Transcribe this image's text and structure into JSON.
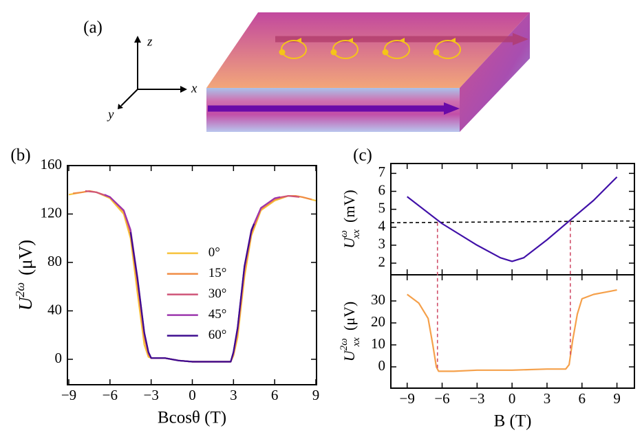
{
  "panel_a": {
    "label": "(a)",
    "axis_labels": {
      "x": "x",
      "y": "y",
      "z": "z"
    }
  },
  "chart_data": [
    {
      "type": "line",
      "panel_label": "(b)",
      "xlabel": "Bcosθ (T)",
      "ylabel": {
        "base": "U",
        "sup": "2ω",
        "unit": "(μV)"
      },
      "xlim": [
        -9.1,
        9.05
      ],
      "ylim": [
        -21,
        160
      ],
      "xticks": [
        {
          "value": -9,
          "label": "−9"
        },
        {
          "value": -6,
          "label": "−6"
        },
        {
          "value": -3,
          "label": "−3"
        },
        0,
        3,
        6,
        9
      ],
      "yticks": [
        0,
        40,
        80,
        120,
        160
      ],
      "legend": "center",
      "series": [
        {
          "name": "0°",
          "color": "#f7c33c",
          "x": [
            -9,
            -8,
            -7.5,
            -7,
            -6,
            -5,
            -4.5,
            -4,
            -3.5,
            -3.2,
            -3,
            -2,
            -1,
            0,
            1,
            2,
            2.8,
            3,
            3.3,
            3.8,
            4.3,
            5,
            6,
            7,
            7.5,
            8,
            9
          ],
          "values": [
            136,
            138,
            139,
            138,
            133,
            120,
            100,
            55,
            12,
            2,
            1,
            1,
            -1,
            -2,
            -2,
            -2,
            -2,
            3,
            18,
            68,
            102,
            123,
            131,
            135,
            135,
            134,
            131
          ]
        },
        {
          "name": "15°",
          "color": "#f08c45",
          "x": [
            -8.7,
            -8,
            -7.5,
            -7,
            -6,
            -5,
            -4.5,
            -4,
            -3.5,
            -3.2,
            -3,
            -2,
            -1,
            0,
            1,
            2,
            2.8,
            3,
            3.3,
            3.8,
            4.3,
            5,
            6,
            7,
            7.5,
            8,
            8.7
          ],
          "values": [
            137,
            138,
            139,
            138,
            134,
            122,
            104,
            62,
            18,
            4,
            1,
            1,
            -1,
            -2,
            -2,
            -2,
            -2,
            4,
            22,
            72,
            104,
            124,
            132,
            135,
            135,
            134,
            132
          ]
        },
        {
          "name": "30°",
          "color": "#cf5478",
          "x": [
            -7.8,
            -7,
            -6,
            -5,
            -4.5,
            -4,
            -3.5,
            -3.2,
            -3,
            -2,
            -1,
            0,
            1,
            2,
            2.8,
            3,
            3.3,
            3.8,
            4.3,
            5,
            6,
            7,
            7.8
          ],
          "values": [
            139,
            138,
            134,
            123,
            106,
            66,
            21,
            5,
            1,
            1,
            -1,
            -2,
            -2,
            -2,
            -2,
            5,
            25,
            76,
            106,
            125,
            133,
            135,
            134
          ]
        },
        {
          "name": "45°",
          "color": "#9c36ad",
          "x": [
            -6.4,
            -6,
            -5,
            -4.5,
            -4,
            -3.5,
            -3.2,
            -3,
            -2,
            -1,
            0,
            1,
            2,
            2.8,
            3,
            3.3,
            3.8,
            4.3,
            5,
            6,
            6.4
          ],
          "values": [
            136,
            134,
            123,
            107,
            68,
            22,
            6,
            1,
            1,
            -1,
            -2,
            -2,
            -2,
            -2,
            6,
            26,
            77,
            107,
            125,
            133,
            134
          ]
        },
        {
          "name": "60°",
          "color": "#3d0c8f",
          "x": [
            -4.5,
            -4,
            -3.5,
            -3.2,
            -3,
            -2,
            -1,
            0,
            1,
            2,
            2.8,
            3,
            3.3,
            3.8,
            4.3,
            4.5
          ],
          "values": [
            105,
            67,
            22,
            6,
            1,
            1,
            -1,
            -2,
            -2,
            -2,
            -2,
            6,
            26,
            77,
            106,
            112
          ]
        }
      ]
    },
    {
      "type": "line",
      "panel_label": "(c)",
      "ylabel": {
        "base": "U",
        "sup": "ω",
        "sub": "xx",
        "unit": "(mV)"
      },
      "xlim": [
        -10.4,
        10.5
      ],
      "ylim": [
        1.35,
        7.55
      ],
      "yticks": [
        2,
        3,
        4,
        5,
        6,
        7
      ],
      "vlines": [
        -6.4,
        5.0
      ],
      "series": [
        {
          "color": "#000000",
          "dash": true,
          "x": [
            -10.4,
            10.5
          ],
          "values": [
            4.25,
            4.35
          ]
        },
        {
          "color": "#4010a8",
          "x": [
            -9,
            -6,
            -3,
            -1,
            0,
            1,
            3,
            5,
            7,
            9
          ],
          "values": [
            5.7,
            4.2,
            3.0,
            2.3,
            2.1,
            2.3,
            3.3,
            4.4,
            5.5,
            6.8
          ]
        }
      ]
    },
    {
      "type": "line",
      "xlabel": "B (T)",
      "ylabel": {
        "base": "U",
        "sup": "2ω",
        "sub": "xx",
        "unit": "(μV)"
      },
      "xlim": [
        -10.4,
        10.5
      ],
      "ylim": [
        -9.7,
        41.9
      ],
      "xticks": [
        {
          "value": -9,
          "label": "−9"
        },
        {
          "value": -6,
          "label": "−6"
        },
        {
          "value": -3,
          "label": "−3"
        },
        0,
        3,
        6,
        9
      ],
      "yticks": [
        0,
        10,
        20,
        30
      ],
      "series": [
        {
          "color": "#f5a04a",
          "x": [
            -9,
            -8,
            -7.2,
            -6.8,
            -6.5,
            -6.3,
            -5,
            -3,
            0,
            3,
            4.6,
            4.9,
            5.2,
            5.6,
            6,
            7,
            8,
            9
          ],
          "values": [
            33,
            29,
            22,
            10,
            0,
            -2,
            -2,
            -1.5,
            -1.5,
            -1,
            -1,
            1,
            12,
            24,
            31,
            33,
            34,
            35
          ]
        }
      ]
    }
  ]
}
